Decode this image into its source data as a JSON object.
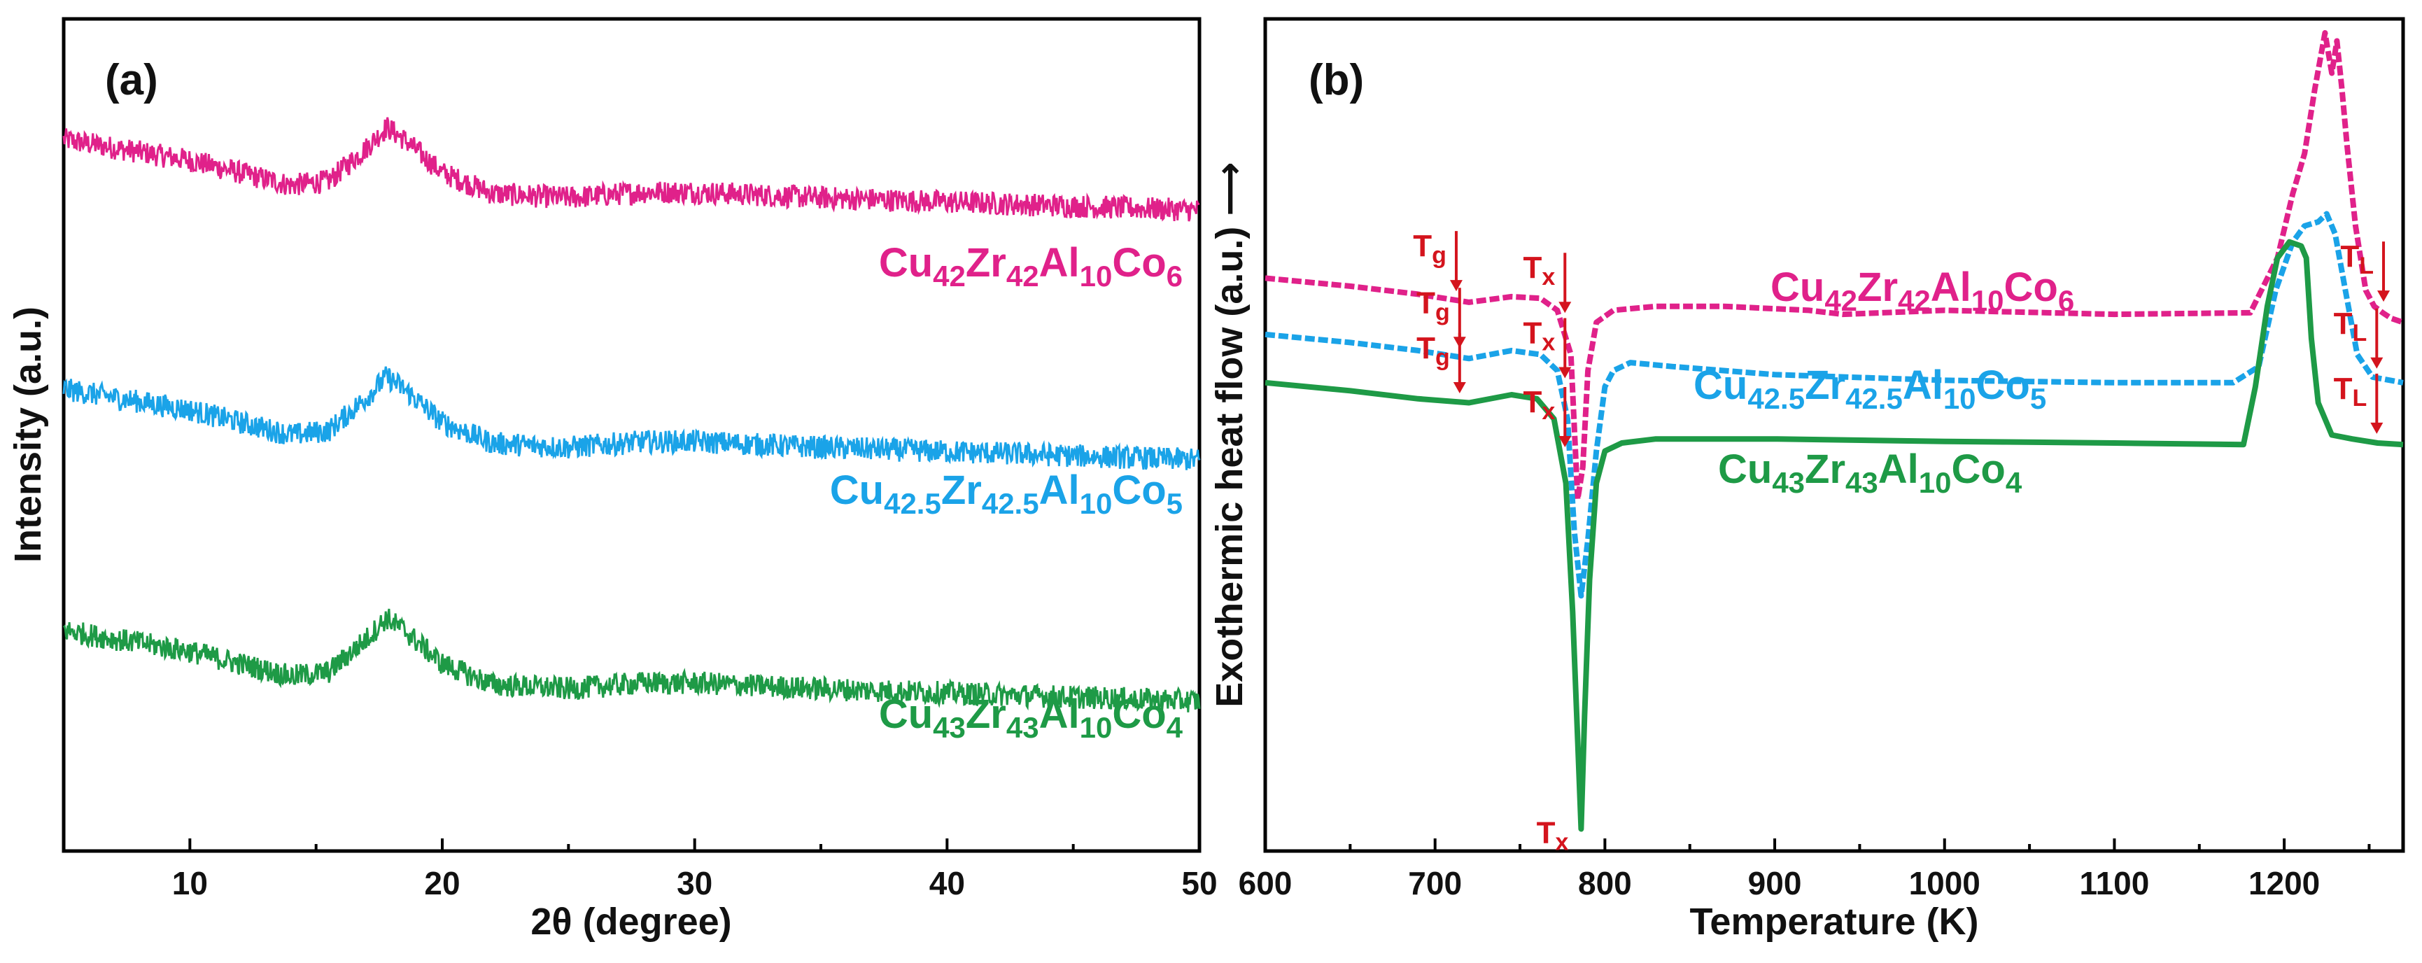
{
  "chart_data": [
    {
      "panel": "(a)",
      "type": "line",
      "xlabel": "2θ (degree)",
      "ylabel": "Intensity (a.u.)",
      "xlim": [
        5,
        50
      ],
      "ylim": [
        0,
        1
      ],
      "xticks": [
        10,
        20,
        30,
        40,
        50
      ],
      "grid": false,
      "series": [
        {
          "name": "Cu42Zr42Al10Co6",
          "color": "#e0218a",
          "offset": 0.77,
          "label": {
            "parts": [
              [
                "Cu",
                ""
              ],
              [
                "42",
                "sub"
              ],
              [
                "Zr",
                ""
              ],
              [
                "42",
                "sub"
              ],
              [
                "Al",
                ""
              ],
              [
                "10",
                "sub"
              ],
              [
                "Co",
                ""
              ],
              [
                "6",
                "sub"
              ]
            ]
          }
        },
        {
          "name": "Cu42.5Zr42.5Al10Co5",
          "color": "#1aa3e8",
          "offset": 0.47,
          "label": {
            "parts": [
              [
                "Cu",
                ""
              ],
              [
                "42.5",
                "sub"
              ],
              [
                "Zr",
                ""
              ],
              [
                "42.5",
                "sub"
              ],
              [
                "Al",
                ""
              ],
              [
                "10",
                "sub"
              ],
              [
                "Co",
                ""
              ],
              [
                "5",
                "sub"
              ]
            ]
          }
        },
        {
          "name": "Cu43Zr43Al10Co4",
          "color": "#1e9a46",
          "offset": 0.18,
          "label": {
            "parts": [
              [
                "Cu",
                ""
              ],
              [
                "43",
                "sub"
              ],
              [
                "Zr",
                ""
              ],
              [
                "43",
                "sub"
              ],
              [
                "Al",
                ""
              ],
              [
                "10",
                "sub"
              ],
              [
                "Co",
                ""
              ],
              [
                "4",
                "sub"
              ]
            ]
          }
        }
      ],
      "profile": {
        "x": [
          5,
          8,
          10,
          12,
          14,
          15.5,
          17,
          17.8,
          18.5,
          20,
          22,
          25,
          28,
          30,
          35,
          40,
          45,
          50
        ],
        "y": [
          0.085,
          0.07,
          0.06,
          0.045,
          0.03,
          0.035,
          0.075,
          0.1,
          0.085,
          0.045,
          0.02,
          0.015,
          0.022,
          0.022,
          0.015,
          0.01,
          0.005,
          0.0
        ]
      }
    },
    {
      "panel": "(b)",
      "type": "line",
      "xlabel": "Temperature (K)",
      "ylabel": "Exothermic heat flow (a.u.) ⟶",
      "xlim": [
        600,
        1270
      ],
      "ylim": [
        0,
        1
      ],
      "xticks": [
        600,
        700,
        800,
        900,
        1000,
        1100,
        1200
      ],
      "grid": false,
      "series": [
        {
          "name": "Cu42Zr42Al10Co6",
          "color": "#e0218a",
          "dashed": true,
          "x": [
            600,
            650,
            690,
            720,
            745,
            762,
            772,
            780,
            784,
            787,
            790,
            795,
            805,
            830,
            870,
            920,
            940,
            1000,
            1100,
            1180,
            1196,
            1205,
            1212,
            1218,
            1224,
            1228,
            1231,
            1234,
            1237,
            1242,
            1248,
            1253,
            1258,
            1263,
            1270
          ],
          "y": [
            0.695,
            0.685,
            0.675,
            0.665,
            0.672,
            0.67,
            0.655,
            0.6,
            0.42,
            0.46,
            0.58,
            0.64,
            0.655,
            0.66,
            0.66,
            0.655,
            0.65,
            0.655,
            0.65,
            0.652,
            0.72,
            0.8,
            0.85,
            0.93,
            1.0,
            0.95,
            0.99,
            0.93,
            0.86,
            0.76,
            0.68,
            0.66,
            0.652,
            0.645,
            0.64
          ],
          "label": {
            "parts": [
              [
                "Cu",
                ""
              ],
              [
                "42",
                "sub"
              ],
              [
                "Zr",
                ""
              ],
              [
                "42",
                "sub"
              ],
              [
                "Al",
                ""
              ],
              [
                "10",
                "sub"
              ],
              [
                "Co",
                ""
              ],
              [
                "6",
                "sub"
              ]
            ]
          }
        },
        {
          "name": "Cu42.5Zr42.5Al10Co5",
          "color": "#1aa3e8",
          "dashed": true,
          "x": [
            600,
            650,
            690,
            720,
            745,
            762,
            772,
            778,
            782,
            786,
            790,
            795,
            800,
            805,
            815,
            840,
            900,
            1000,
            1100,
            1170,
            1185,
            1195,
            1205,
            1212,
            1220,
            1225,
            1230,
            1236,
            1243,
            1252,
            1270
          ],
          "y": [
            0.625,
            0.615,
            0.605,
            0.595,
            0.605,
            0.6,
            0.58,
            0.52,
            0.38,
            0.3,
            0.37,
            0.48,
            0.56,
            0.58,
            0.59,
            0.585,
            0.575,
            0.568,
            0.565,
            0.565,
            0.585,
            0.68,
            0.74,
            0.76,
            0.765,
            0.775,
            0.75,
            0.68,
            0.6,
            0.572,
            0.565
          ],
          "label": {
            "parts": [
              [
                "Cu",
                ""
              ],
              [
                "42.5",
                "sub"
              ],
              [
                "Zr",
                ""
              ],
              [
                "42.5",
                "sub"
              ],
              [
                "Al",
                ""
              ],
              [
                "10",
                "sub"
              ],
              [
                "Co",
                ""
              ],
              [
                "5",
                "sub"
              ]
            ]
          }
        },
        {
          "name": "Cu43Zr43Al10Co4",
          "color": "#1e9a46",
          "dashed": false,
          "x": [
            600,
            650,
            690,
            720,
            745,
            760,
            770,
            777,
            781,
            784,
            786,
            788,
            791,
            795,
            800,
            810,
            830,
            900,
            1000,
            1100,
            1176,
            1183,
            1190,
            1196,
            1203,
            1210,
            1213,
            1216,
            1220,
            1228,
            1240,
            1255,
            1270
          ],
          "y": [
            0.565,
            0.555,
            0.545,
            0.54,
            0.55,
            0.545,
            0.52,
            0.44,
            0.28,
            0.12,
            0.01,
            0.15,
            0.32,
            0.44,
            0.48,
            0.49,
            0.495,
            0.495,
            0.492,
            0.49,
            0.488,
            0.56,
            0.66,
            0.72,
            0.74,
            0.735,
            0.72,
            0.62,
            0.54,
            0.5,
            0.495,
            0.49,
            0.488
          ],
          "label": {
            "parts": [
              [
                "Cu",
                ""
              ],
              [
                "43",
                "sub"
              ],
              [
                "Zr",
                ""
              ],
              [
                "43",
                "sub"
              ],
              [
                "Al",
                ""
              ],
              [
                "10",
                "sub"
              ],
              [
                "Co",
                ""
              ],
              [
                "4",
                "sub"
              ]
            ]
          }
        }
      ],
      "annotations": [
        {
          "text": "T",
          "sub": "g",
          "series": 0,
          "x": 710,
          "arrow": true
        },
        {
          "text": "T",
          "sub": "x",
          "series": 0,
          "x": 774,
          "arrow": true
        },
        {
          "text": "T",
          "sub": "g",
          "series": 1,
          "x": 712,
          "arrow": true
        },
        {
          "text": "T",
          "sub": "x",
          "series": 1,
          "x": 774,
          "arrow": true
        },
        {
          "text": "T",
          "sub": "g",
          "series": 2,
          "x": 712,
          "arrow": true
        },
        {
          "text": "T",
          "sub": "x",
          "series": 2,
          "x": 774,
          "arrow": true
        },
        {
          "text": "T",
          "sub": "x",
          "series": 2,
          "x": 786,
          "arrow": false,
          "below": true
        },
        {
          "text": "T",
          "sub": "L",
          "series": 0,
          "x": 1256,
          "arrow": true
        },
        {
          "text": "T",
          "sub": "L",
          "series": 1,
          "x": 1252,
          "arrow": true
        },
        {
          "text": "T",
          "sub": "L",
          "series": 2,
          "x": 1252,
          "arrow": true
        }
      ]
    }
  ]
}
